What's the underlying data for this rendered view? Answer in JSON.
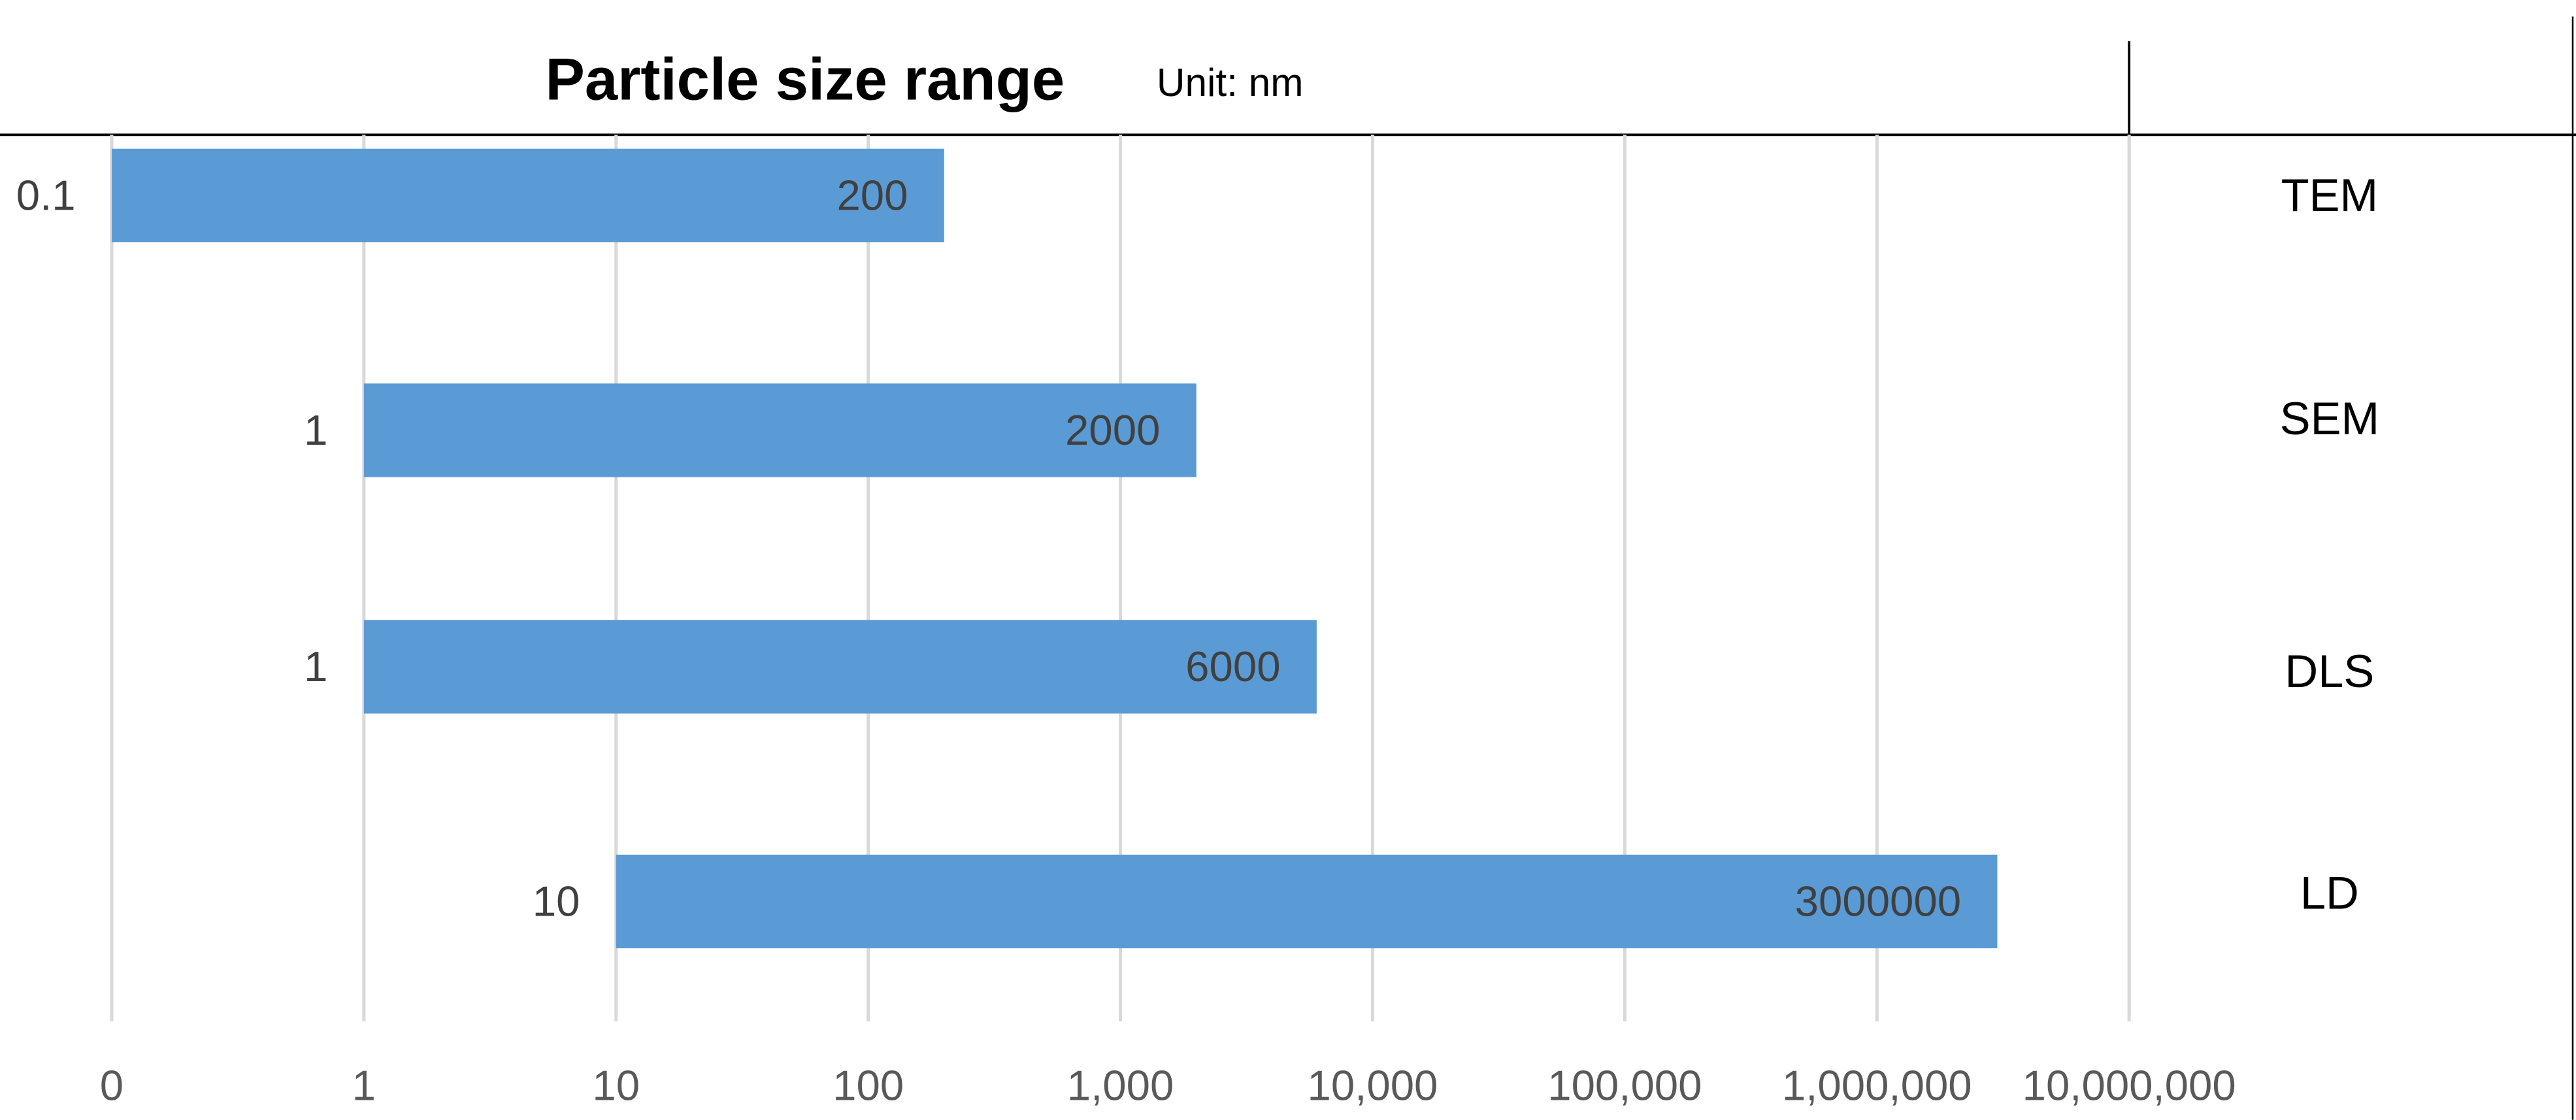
{
  "chart_data": {
    "type": "floating-bar",
    "title": "Particle size range",
    "annotation": "Unit: nm",
    "categories": [
      "TEM",
      "SEM",
      "DLS",
      "LD"
    ],
    "starts": [
      0.1,
      1,
      1,
      10
    ],
    "ends": [
      200,
      2000,
      6000,
      3000000
    ],
    "color": "#5b9bd5",
    "xscale": "log",
    "xlim": [
      0.1,
      10000000
    ],
    "xticks": [
      {
        "value": 0.1,
        "label": "0"
      },
      1,
      10,
      100,
      {
        "value": 1000,
        "label": "1,000"
      },
      {
        "value": 10000,
        "label": "10,000"
      },
      {
        "value": 100000,
        "label": "100,000"
      },
      {
        "value": 1000000,
        "label": "1,000,000"
      },
      {
        "value": 10000000,
        "label": "10,000,000"
      }
    ],
    "grid": true
  }
}
